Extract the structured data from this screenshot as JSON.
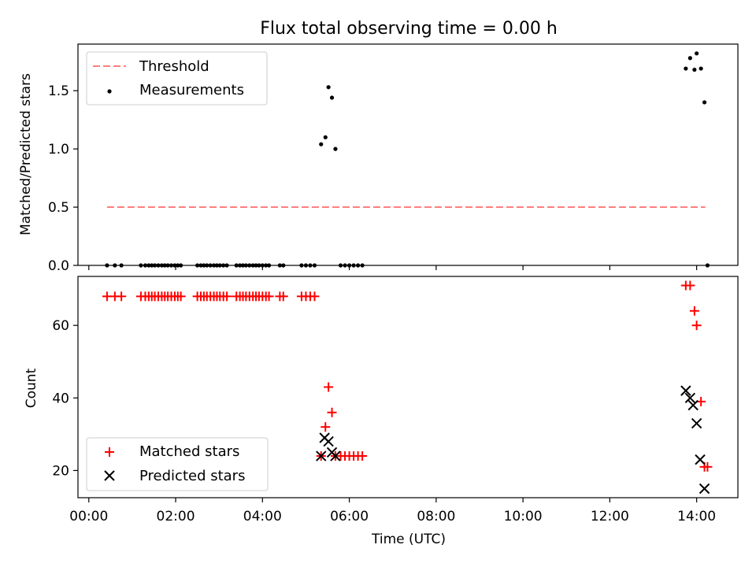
{
  "title": "Flux total observing time = 0.00 h",
  "chart_data": [
    {
      "type": "scatter",
      "ylabel": "Matched/Predicted stars",
      "xlabel": "",
      "xlim": [
        -0.25,
        14.95
      ],
      "ylim": [
        0,
        1.9
      ],
      "yticks": [
        0.0,
        0.5,
        1.0,
        1.5
      ],
      "ytick_labels": [
        "0.0",
        "0.5",
        "1.0",
        "1.5"
      ],
      "legend_position": "upper-left",
      "series": [
        {
          "name": "Threshold",
          "kind": "line",
          "style": "dashed",
          "color": "#ff7f7f",
          "x": [
            0.42,
            14.2
          ],
          "y": [
            0.5,
            0.5
          ]
        },
        {
          "name": "Measurements",
          "kind": "points",
          "marker": "dot",
          "color": "#000000",
          "x": [
            0.42,
            0.6,
            0.75,
            1.2,
            1.3,
            1.38,
            1.45,
            1.52,
            1.6,
            1.68,
            1.75,
            1.82,
            1.9,
            1.98,
            2.05,
            2.12,
            2.5,
            2.58,
            2.65,
            2.72,
            2.8,
            2.88,
            2.95,
            3.02,
            3.1,
            3.18,
            3.4,
            3.48,
            3.55,
            3.62,
            3.7,
            3.78,
            3.85,
            3.92,
            4.0,
            4.08,
            4.15,
            4.4,
            4.48,
            4.9,
            5.0,
            5.1,
            5.2,
            5.35,
            5.45,
            5.52,
            5.6,
            5.68,
            5.8,
            5.9,
            6.0,
            6.1,
            6.2,
            6.3,
            13.75,
            13.85,
            13.95,
            14.0,
            14.1,
            14.18,
            14.25
          ],
          "y": [
            0,
            0,
            0,
            0,
            0,
            0,
            0,
            0,
            0,
            0,
            0,
            0,
            0,
            0,
            0,
            0,
            0,
            0,
            0,
            0,
            0,
            0,
            0,
            0,
            0,
            0,
            0,
            0,
            0,
            0,
            0,
            0,
            0,
            0,
            0,
            0,
            0,
            0,
            0,
            0,
            0,
            0,
            0,
            1.04,
            1.1,
            1.53,
            1.44,
            1.0,
            0,
            0,
            0,
            0,
            0,
            0,
            1.69,
            1.78,
            1.68,
            1.82,
            1.69,
            1.4,
            0
          ]
        }
      ]
    },
    {
      "type": "scatter",
      "ylabel": "Count",
      "xlabel": "Time (UTC)",
      "xlim": [
        -0.25,
        14.95
      ],
      "ylim": [
        12.5,
        73.5
      ],
      "yticks": [
        20,
        40,
        60
      ],
      "ytick_labels": [
        "20",
        "40",
        "60"
      ],
      "xticks": [
        0,
        2,
        4,
        6,
        8,
        10,
        12,
        14
      ],
      "xtick_labels": [
        "00:00",
        "02:00",
        "04:00",
        "06:00",
        "08:00",
        "10:00",
        "12:00",
        "14:00"
      ],
      "legend_position": "lower-left",
      "series": [
        {
          "name": "Matched stars",
          "kind": "points",
          "marker": "plus",
          "color": "#ff0000",
          "x": [
            0.42,
            0.6,
            0.75,
            1.2,
            1.3,
            1.38,
            1.45,
            1.52,
            1.6,
            1.68,
            1.75,
            1.82,
            1.9,
            1.98,
            2.05,
            2.12,
            2.5,
            2.58,
            2.65,
            2.72,
            2.8,
            2.88,
            2.95,
            3.02,
            3.1,
            3.18,
            3.4,
            3.48,
            3.55,
            3.62,
            3.7,
            3.78,
            3.85,
            3.92,
            4.0,
            4.08,
            4.15,
            4.4,
            4.48,
            4.9,
            5.0,
            5.1,
            5.2,
            5.35,
            5.45,
            5.52,
            5.6,
            5.68,
            5.8,
            5.9,
            6.0,
            6.1,
            6.2,
            6.3,
            13.75,
            13.85,
            13.95,
            14.0,
            14.1,
            14.18,
            14.25
          ],
          "y": [
            68,
            68,
            68,
            68,
            68,
            68,
            68,
            68,
            68,
            68,
            68,
            68,
            68,
            68,
            68,
            68,
            68,
            68,
            68,
            68,
            68,
            68,
            68,
            68,
            68,
            68,
            68,
            68,
            68,
            68,
            68,
            68,
            68,
            68,
            68,
            68,
            68,
            68,
            68,
            68,
            68,
            68,
            68,
            24,
            32,
            43,
            36,
            24,
            24,
            24,
            24,
            24,
            24,
            24,
            71,
            71,
            64,
            60,
            39,
            21,
            21
          ]
        },
        {
          "name": "Predicted stars",
          "kind": "points",
          "marker": "x",
          "color": "#000000",
          "x": [
            5.35,
            5.43,
            5.52,
            5.6,
            5.68,
            13.75,
            13.85,
            13.92,
            14.0,
            14.08,
            14.18
          ],
          "y": [
            24,
            29,
            28,
            25,
            24,
            42,
            40,
            38,
            33,
            23,
            15
          ]
        }
      ]
    }
  ]
}
